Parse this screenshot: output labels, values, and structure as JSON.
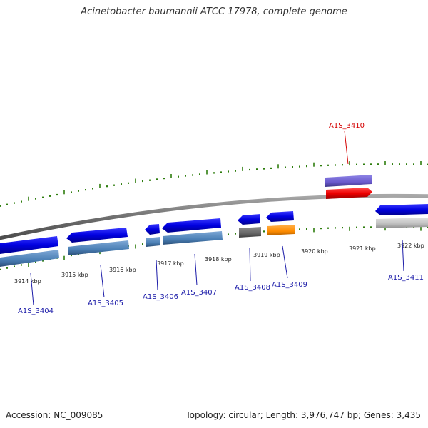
{
  "title": "Acinetobacter baumannii ATCC 17978, complete genome",
  "footer": {
    "accession": "Accession: NC_009085",
    "summary": "Topology: circular; Length: 3,976,747 bp; Genes: 3,435"
  },
  "axis": {
    "unit": "kbp",
    "labels": [
      "3914 kbp",
      "3915 kbp",
      "3916 kbp",
      "3917 kbp",
      "3918 kbp",
      "3919 kbp",
      "3920 kbp",
      "3921 kbp",
      "3922 kbp"
    ]
  },
  "genes": [
    {
      "name": "A1S_3404",
      "color": "#0000dd",
      "strand": "minus"
    },
    {
      "name": "A1S_3405",
      "color": "#0000dd",
      "strand": "minus"
    },
    {
      "name": "A1S_3406",
      "color": "#0000dd",
      "strand": "minus"
    },
    {
      "name": "A1S_3407",
      "color": "#0000dd",
      "strand": "minus"
    },
    {
      "name": "A1S_3408",
      "color": "#0000dd",
      "strand": "minus"
    },
    {
      "name": "A1S_3409",
      "color": "#0000dd",
      "strand": "minus"
    },
    {
      "name": "A1S_3410",
      "color": "#e00000",
      "strand": "plus",
      "highlight": true
    },
    {
      "name": "A1S_3411",
      "color": "#0000dd",
      "strand": "minus"
    }
  ],
  "colors": {
    "backbone": "#7a7a7a",
    "tick": "#2e7d0e",
    "cds_minus": "#0000dd",
    "feature_steel": "#4a7fb5",
    "feature_gray": "#666666",
    "feature_orange": "#ff8c00",
    "feature_light": "#bbbbbb",
    "feature_purple": "#6a5acd",
    "highlight": "#e00000",
    "label": "#1a1aa8"
  }
}
